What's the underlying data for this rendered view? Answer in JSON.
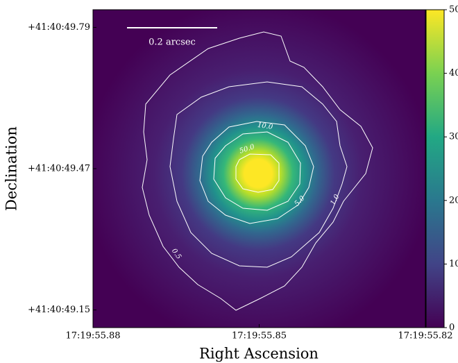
{
  "chart_data": {
    "type": "image",
    "xlabel": "Right Ascension",
    "ylabel": "Declination",
    "xlim": [
      55.88,
      55.82
    ],
    "xticks": [
      {
        "value": 55.88,
        "label": "17:19:55.88"
      },
      {
        "value": 55.85,
        "label": "17:19:55.85"
      },
      {
        "value": 55.82,
        "label": "17:19:55.82"
      }
    ],
    "ylim": [
      49.11,
      49.83
    ],
    "yticks": [
      {
        "value": 49.79,
        "label": "+41:40:49.79"
      },
      {
        "value": 49.47,
        "label": "+41:40:49.47"
      },
      {
        "value": 49.15,
        "label": "+41:40:49.15"
      }
    ],
    "clim": [
      0,
      50
    ],
    "cticks": [
      0,
      10,
      20,
      30,
      40,
      50
    ],
    "colormap": "viridis",
    "contour_levels": {
      "values": [
        0.5,
        1,
        5,
        10,
        50
      ],
      "value_labels": [
        "0.5",
        "1.0",
        "5.0",
        "10.0",
        "50.0"
      ],
      "color": "#ffffff"
    },
    "scale_bar": {
      "label": "0.2 arcsec"
    }
  }
}
